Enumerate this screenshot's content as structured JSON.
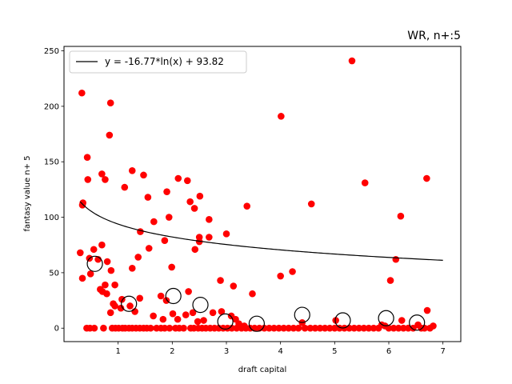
{
  "chart_data": {
    "type": "scatter",
    "title": "WR, n+:5",
    "xlabel": "draft capital",
    "ylabel": "fantasy value n+ 5",
    "xlim": [
      0.0,
      7.33
    ],
    "ylim": [
      -12.1,
      254.0
    ],
    "xticks": [
      1,
      2,
      3,
      4,
      5,
      6,
      7
    ],
    "yticks": [
      0,
      50,
      100,
      150,
      200,
      250
    ],
    "grid": false,
    "legend": {
      "placement": "top-left",
      "entries": [
        "y = -16.77*ln(x) + 93.82"
      ]
    },
    "colors": {
      "points": "#ff0000",
      "fit_line": "#000000",
      "bin_markers": "#000000"
    },
    "fit": {
      "a": -16.77,
      "b": 93.82,
      "x_range": [
        0.3,
        7.0
      ]
    },
    "scatter_points": [
      [
        0.33,
        212
      ],
      [
        0.86,
        203
      ],
      [
        0.84,
        174
      ],
      [
        0.43,
        154
      ],
      [
        0.44,
        134
      ],
      [
        0.76,
        134
      ],
      [
        0.7,
        139
      ],
      [
        0.35,
        113
      ],
      [
        0.34,
        111
      ],
      [
        1.12,
        127
      ],
      [
        1.26,
        142
      ],
      [
        1.47,
        138
      ],
      [
        1.55,
        118
      ],
      [
        1.9,
        123
      ],
      [
        2.11,
        135
      ],
      [
        2.28,
        133
      ],
      [
        2.33,
        114
      ],
      [
        2.51,
        119
      ],
      [
        2.41,
        108
      ],
      [
        1.66,
        96
      ],
      [
        2.68,
        98
      ],
      [
        1.94,
        100
      ],
      [
        1.86,
        79
      ],
      [
        2.5,
        82
      ],
      [
        2.5,
        78
      ],
      [
        2.68,
        82
      ],
      [
        3.38,
        110
      ],
      [
        3.0,
        85
      ],
      [
        1.41,
        87
      ],
      [
        4.01,
        191
      ],
      [
        4.57,
        112
      ],
      [
        5.32,
        241
      ],
      [
        5.56,
        131
      ],
      [
        6.22,
        101
      ],
      [
        6.7,
        135
      ],
      [
        6.13,
        62
      ],
      [
        6.03,
        43
      ],
      [
        0.3,
        68
      ],
      [
        0.63,
        62
      ],
      [
        0.55,
        71
      ],
      [
        0.47,
        63
      ],
      [
        0.49,
        49
      ],
      [
        0.34,
        45
      ],
      [
        0.7,
        75
      ],
      [
        0.8,
        60
      ],
      [
        0.87,
        52
      ],
      [
        0.94,
        39
      ],
      [
        1.26,
        54
      ],
      [
        1.37,
        64
      ],
      [
        1.57,
        72
      ],
      [
        1.99,
        55
      ],
      [
        2.42,
        71
      ],
      [
        2.89,
        43
      ],
      [
        3.13,
        38
      ],
      [
        3.48,
        31
      ],
      [
        4.0,
        47
      ],
      [
        4.22,
        51
      ],
      [
        0.67,
        35
      ],
      [
        0.71,
        33
      ],
      [
        0.76,
        39
      ],
      [
        0.79,
        31
      ],
      [
        0.91,
        22
      ],
      [
        0.94,
        20
      ],
      [
        1.07,
        26
      ],
      [
        1.22,
        20
      ],
      [
        1.4,
        27
      ],
      [
        1.79,
        29
      ],
      [
        1.89,
        25
      ],
      [
        2.3,
        33
      ],
      [
        0.86,
        14
      ],
      [
        1.05,
        18
      ],
      [
        1.31,
        15
      ],
      [
        1.65,
        11
      ],
      [
        1.83,
        8
      ],
      [
        2.01,
        13
      ],
      [
        2.1,
        8
      ],
      [
        2.25,
        12
      ],
      [
        2.38,
        14
      ],
      [
        2.47,
        6
      ],
      [
        2.58,
        7
      ],
      [
        2.75,
        14
      ],
      [
        2.91,
        15
      ],
      [
        3.09,
        11
      ],
      [
        3.17,
        8
      ],
      [
        3.23,
        4
      ],
      [
        3.33,
        2
      ],
      [
        4.4,
        5
      ],
      [
        5.02,
        7
      ],
      [
        5.87,
        3
      ],
      [
        5.93,
        2
      ],
      [
        6.24,
        7
      ],
      [
        6.71,
        16
      ],
      [
        6.54,
        3
      ],
      [
        6.82,
        2
      ],
      [
        0.42,
        0
      ],
      [
        0.48,
        0
      ],
      [
        0.56,
        0
      ],
      [
        0.73,
        0
      ],
      [
        0.89,
        0
      ],
      [
        0.95,
        0
      ],
      [
        1.01,
        0
      ],
      [
        1.08,
        0
      ],
      [
        1.13,
        0
      ],
      [
        1.2,
        0
      ],
      [
        1.26,
        0
      ],
      [
        1.33,
        0
      ],
      [
        1.4,
        0
      ],
      [
        1.47,
        0
      ],
      [
        1.53,
        0
      ],
      [
        1.6,
        0
      ],
      [
        1.71,
        0
      ],
      [
        1.79,
        0
      ],
      [
        1.86,
        0
      ],
      [
        1.95,
        0
      ],
      [
        2.06,
        0
      ],
      [
        2.13,
        0
      ],
      [
        2.21,
        0
      ],
      [
        2.34,
        0
      ],
      [
        2.4,
        0
      ],
      [
        2.48,
        0
      ],
      [
        2.55,
        0
      ],
      [
        2.62,
        0
      ],
      [
        2.7,
        0
      ],
      [
        2.78,
        0
      ],
      [
        2.86,
        0
      ],
      [
        2.94,
        0
      ],
      [
        3.02,
        0
      ],
      [
        3.1,
        0
      ],
      [
        3.19,
        0
      ],
      [
        3.28,
        0
      ],
      [
        3.36,
        0
      ],
      [
        3.44,
        0
      ],
      [
        3.52,
        0
      ],
      [
        3.61,
        0
      ],
      [
        3.7,
        0
      ],
      [
        3.79,
        0
      ],
      [
        3.88,
        0
      ],
      [
        3.97,
        0
      ],
      [
        4.06,
        0
      ],
      [
        4.15,
        0
      ],
      [
        4.24,
        0
      ],
      [
        4.33,
        0
      ],
      [
        4.45,
        0
      ],
      [
        4.55,
        0
      ],
      [
        4.64,
        0
      ],
      [
        4.73,
        0
      ],
      [
        4.82,
        0
      ],
      [
        4.91,
        0
      ],
      [
        5.0,
        0
      ],
      [
        5.09,
        0
      ],
      [
        5.18,
        0
      ],
      [
        5.27,
        0
      ],
      [
        5.36,
        0
      ],
      [
        5.45,
        0
      ],
      [
        5.54,
        0
      ],
      [
        5.63,
        0
      ],
      [
        5.72,
        0
      ],
      [
        5.81,
        0
      ],
      [
        6.0,
        0
      ],
      [
        6.09,
        0
      ],
      [
        6.18,
        0
      ],
      [
        6.27,
        0
      ],
      [
        6.36,
        0
      ],
      [
        6.45,
        0
      ],
      [
        6.6,
        0
      ],
      [
        6.66,
        0
      ],
      [
        6.76,
        0
      ]
    ],
    "bin_markers": [
      [
        0.57,
        58
      ],
      [
        1.2,
        22
      ],
      [
        2.02,
        29
      ],
      [
        2.52,
        21
      ],
      [
        2.98,
        6
      ],
      [
        3.56,
        4
      ],
      [
        4.4,
        12
      ],
      [
        5.15,
        7
      ],
      [
        5.95,
        9
      ],
      [
        6.52,
        5
      ]
    ]
  }
}
